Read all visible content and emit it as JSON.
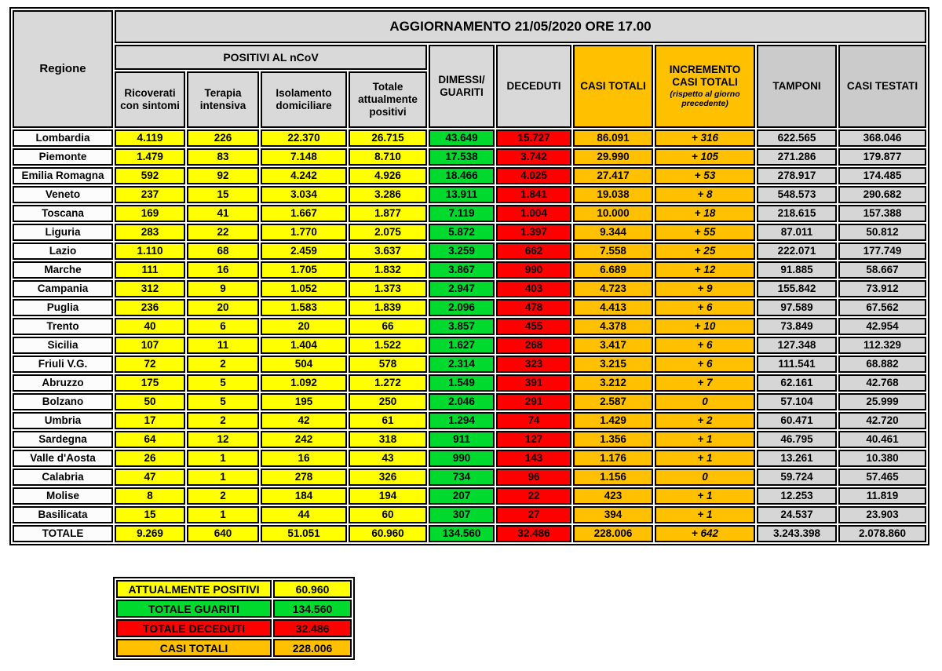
{
  "colors": {
    "yellow": "#FFFF00",
    "green": "#00D92E",
    "red": "#FF0000",
    "orange": "#FFC000",
    "hdr": "#D9D9D9",
    "hdr2": "#CBCBCB",
    "cellgray": "#D6D6D6",
    "regionbg": "#FCFCFC"
  },
  "chart_data": {
    "type": "table",
    "title": "AGGIORNAMENTO 21/05/2020 ORE 17.00",
    "region_header": "Regione",
    "group_header": "POSITIVI AL nCoV",
    "sub_headers": [
      "Ricoverati con sintomi",
      "Terapia intensiva",
      "Isolamento domiciliare",
      "Totale attualmente positivi"
    ],
    "main_headers": [
      "DIMESSI/\nGUARITI",
      "DECEDUTI",
      "CASI TOTALI",
      "INCREMENTO CASI  TOTALI",
      "TAMPONI",
      "CASI TESTATI"
    ],
    "increment_note": "(rispetto al giorno precedente)",
    "rows": [
      {
        "region": "Lombardia",
        "values": [
          "4.119",
          "226",
          "22.370",
          "26.715",
          "43.649",
          "15.727",
          "86.091",
          "+ 316",
          "622.565",
          "368.046"
        ]
      },
      {
        "region": "Piemonte",
        "values": [
          "1.479",
          "83",
          "7.148",
          "8.710",
          "17.538",
          "3.742",
          "29.990",
          "+ 105",
          "271.286",
          "179.877"
        ]
      },
      {
        "region": "Emilia Romagna",
        "values": [
          "592",
          "92",
          "4.242",
          "4.926",
          "18.466",
          "4.025",
          "27.417",
          "+ 53",
          "278.917",
          "174.485"
        ]
      },
      {
        "region": "Veneto",
        "values": [
          "237",
          "15",
          "3.034",
          "3.286",
          "13.911",
          "1.841",
          "19.038",
          "+ 8",
          "548.573",
          "290.682"
        ]
      },
      {
        "region": "Toscana",
        "values": [
          "169",
          "41",
          "1.667",
          "1.877",
          "7.119",
          "1.004",
          "10.000",
          "+ 18",
          "218.615",
          "157.388"
        ]
      },
      {
        "region": "Liguria",
        "values": [
          "283",
          "22",
          "1.770",
          "2.075",
          "5.872",
          "1.397",
          "9.344",
          "+ 55",
          "87.011",
          "50.812"
        ]
      },
      {
        "region": "Lazio",
        "values": [
          "1.110",
          "68",
          "2.459",
          "3.637",
          "3.259",
          "662",
          "7.558",
          "+ 25",
          "222.071",
          "177.749"
        ]
      },
      {
        "region": "Marche",
        "values": [
          "111",
          "16",
          "1.705",
          "1.832",
          "3.867",
          "990",
          "6.689",
          "+ 12",
          "91.885",
          "58.667"
        ]
      },
      {
        "region": "Campania",
        "values": [
          "312",
          "9",
          "1.052",
          "1.373",
          "2.947",
          "403",
          "4.723",
          "+ 9",
          "155.842",
          "73.912"
        ]
      },
      {
        "region": "Puglia",
        "values": [
          "236",
          "20",
          "1.583",
          "1.839",
          "2.096",
          "478",
          "4.413",
          "+ 6",
          "97.589",
          "67.562"
        ]
      },
      {
        "region": "Trento",
        "values": [
          "40",
          "6",
          "20",
          "66",
          "3.857",
          "455",
          "4.378",
          "+ 10",
          "73.849",
          "42.954"
        ]
      },
      {
        "region": "Sicilia",
        "values": [
          "107",
          "11",
          "1.404",
          "1.522",
          "1.627",
          "268",
          "3.417",
          "+ 6",
          "127.348",
          "112.329"
        ]
      },
      {
        "region": "Friuli V.G.",
        "values": [
          "72",
          "2",
          "504",
          "578",
          "2.314",
          "323",
          "3.215",
          "+ 6",
          "111.541",
          "68.882"
        ]
      },
      {
        "region": "Abruzzo",
        "values": [
          "175",
          "5",
          "1.092",
          "1.272",
          "1.549",
          "391",
          "3.212",
          "+ 7",
          "62.161",
          "42.768"
        ]
      },
      {
        "region": "Bolzano",
        "values": [
          "50",
          "5",
          "195",
          "250",
          "2.046",
          "291",
          "2.587",
          "0",
          "57.104",
          "25.999"
        ]
      },
      {
        "region": "Umbria",
        "values": [
          "17",
          "2",
          "42",
          "61",
          "1.294",
          "74",
          "1.429",
          "+ 2",
          "60.471",
          "42.720"
        ]
      },
      {
        "region": "Sardegna",
        "values": [
          "64",
          "12",
          "242",
          "318",
          "911",
          "127",
          "1.356",
          "+ 1",
          "46.795",
          "40.461"
        ]
      },
      {
        "region": "Valle d'Aosta",
        "values": [
          "26",
          "1",
          "16",
          "43",
          "990",
          "143",
          "1.176",
          "+ 1",
          "13.261",
          "10.380"
        ]
      },
      {
        "region": "Calabria",
        "values": [
          "47",
          "1",
          "278",
          "326",
          "734",
          "96",
          "1.156",
          "0",
          "59.724",
          "57.465"
        ]
      },
      {
        "region": "Molise",
        "values": [
          "8",
          "2",
          "184",
          "194",
          "207",
          "22",
          "423",
          "+ 1",
          "12.253",
          "11.819"
        ]
      },
      {
        "region": "Basilicata",
        "values": [
          "15",
          "1",
          "44",
          "60",
          "307",
          "27",
          "394",
          "+ 1",
          "24.537",
          "23.903"
        ]
      }
    ],
    "total_row": {
      "region": "TOTALE",
      "values": [
        "9.269",
        "640",
        "51.051",
        "60.960",
        "134.560",
        "32.486",
        "228.006",
        "+ 642",
        "3.243.398",
        "2.078.860"
      ]
    }
  },
  "legend": {
    "items": [
      {
        "label": "ATTUALMENTE POSITIVI",
        "value": "60.960",
        "color": "yellow"
      },
      {
        "label": "TOTALE GUARITI",
        "value": "134.560",
        "color": "green"
      },
      {
        "label": "TOTALE DECEDUTI",
        "value": "32.486",
        "color": "red"
      },
      {
        "label": "CASI TOTALI",
        "value": "228.006",
        "color": "orange"
      }
    ]
  }
}
